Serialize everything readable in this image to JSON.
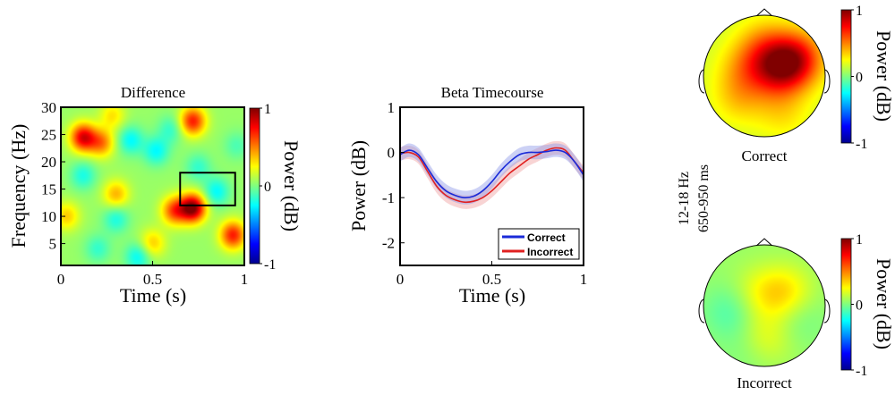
{
  "colors": {
    "correct": "#1a2ad8",
    "incorrect": "#e02020",
    "correct_band": "#8f9ae8",
    "incorrect_band": "#f0a0a0"
  },
  "colormap": "jet",
  "chart_data": [
    {
      "type": "heatmap",
      "title": "Difference",
      "xlabel": "Time (s)",
      "ylabel": "Frequency (Hz)",
      "xlim": [
        0,
        1
      ],
      "ylim": [
        1,
        30
      ],
      "xticks": [
        "0",
        "0.5",
        "1"
      ],
      "yticks": [
        "5",
        "10",
        "15",
        "20",
        "25",
        "30"
      ],
      "colorbar": {
        "label": "Power (dB)",
        "ticks": [
          "1",
          "0",
          "-1"
        ],
        "range": [
          -1,
          1
        ]
      },
      "roi": {
        "time": [
          0.65,
          0.95
        ],
        "freq": [
          12,
          18
        ]
      },
      "blobs": [
        {
          "t": 0.12,
          "f": 24.5,
          "v": 0.75
        },
        {
          "t": 0.22,
          "f": 23.5,
          "v": 0.45
        },
        {
          "t": 0.72,
          "f": 27.5,
          "v": 0.65
        },
        {
          "t": 0.3,
          "f": 14.0,
          "v": 0.35
        },
        {
          "t": 0.72,
          "f": 11.5,
          "v": 0.95
        },
        {
          "t": 0.62,
          "f": 11.0,
          "v": 0.55
        },
        {
          "t": 0.94,
          "f": 6.5,
          "v": 0.65
        },
        {
          "t": 0.5,
          "f": 5.0,
          "v": 0.3
        },
        {
          "t": 0.03,
          "f": 10.0,
          "v": 0.3
        },
        {
          "t": 0.28,
          "f": 28.5,
          "v": 0.25
        },
        {
          "t": 0.38,
          "f": 24.0,
          "v": -0.3
        },
        {
          "t": 0.52,
          "f": 22.0,
          "v": -0.3
        },
        {
          "t": 0.6,
          "f": 26.0,
          "v": -0.2
        },
        {
          "t": 0.12,
          "f": 17.5,
          "v": -0.25
        },
        {
          "t": 0.3,
          "f": 9.5,
          "v": -0.25
        },
        {
          "t": 0.42,
          "f": 2.5,
          "v": -0.3
        },
        {
          "t": 0.2,
          "f": 4.0,
          "v": -0.2
        },
        {
          "t": 0.85,
          "f": 14.5,
          "v": -0.3
        },
        {
          "t": 0.96,
          "f": 23.0,
          "v": -0.15
        },
        {
          "t": 0.75,
          "f": 19.0,
          "v": -0.2
        }
      ]
    },
    {
      "type": "line",
      "title": "Beta Timecourse",
      "xlabel": "Time (s)",
      "ylabel": "Power (dB)",
      "xlim": [
        0,
        1
      ],
      "ylim": [
        -2.5,
        1
      ],
      "xticks": [
        "0",
        "0.5",
        "1"
      ],
      "yticks": [
        "1",
        "0",
        "-1",
        "-2"
      ],
      "legend_position": "bottom-right",
      "x": [
        0,
        0.05,
        0.1,
        0.15,
        0.2,
        0.25,
        0.3,
        0.35,
        0.4,
        0.45,
        0.5,
        0.55,
        0.6,
        0.65,
        0.7,
        0.75,
        0.8,
        0.85,
        0.9,
        0.95,
        1.0
      ],
      "series": [
        {
          "name": "Correct",
          "values": [
            -0.05,
            0.05,
            -0.05,
            -0.35,
            -0.65,
            -0.85,
            -0.95,
            -1.0,
            -0.97,
            -0.85,
            -0.65,
            -0.4,
            -0.2,
            -0.05,
            0.0,
            0.0,
            0.02,
            0.05,
            0.0,
            -0.2,
            -0.5
          ],
          "error": 0.15
        },
        {
          "name": "Incorrect",
          "values": [
            -0.03,
            0.0,
            -0.1,
            -0.42,
            -0.75,
            -0.95,
            -1.05,
            -1.1,
            -1.08,
            -1.0,
            -0.85,
            -0.65,
            -0.45,
            -0.3,
            -0.15,
            -0.05,
            0.05,
            0.1,
            0.05,
            -0.2,
            -0.45
          ],
          "error": 0.15
        }
      ]
    },
    {
      "type": "heatmap",
      "subtype": "topography",
      "title": "Correct",
      "colorbar": {
        "label": "Power (dB)",
        "ticks": [
          "1",
          "0",
          "-1"
        ],
        "range": [
          -1,
          1
        ]
      },
      "spots": [
        {
          "x": 0.35,
          "y": 0.15,
          "v": 0.35
        },
        {
          "x": 0.55,
          "y": 0.3,
          "v": 0.45
        },
        {
          "x": 0.1,
          "y": 0.05,
          "v": 0.3
        },
        {
          "x": -0.3,
          "y": 0.1,
          "v": 0.25
        },
        {
          "x": -0.4,
          "y": -0.35,
          "v": 0.2
        },
        {
          "x": 0.0,
          "y": 0.5,
          "v": 0.25
        },
        {
          "x": -0.15,
          "y": -0.05,
          "v": -0.1
        },
        {
          "x": 0.3,
          "y": -0.6,
          "v": 0.15
        }
      ],
      "base": 0.15
    },
    {
      "type": "heatmap",
      "subtype": "topography",
      "title": "Incorrect",
      "colorbar": {
        "label": "Power (dB)",
        "ticks": [
          "1",
          "0",
          "-1"
        ],
        "range": [
          -1,
          1
        ]
      },
      "spots": [
        {
          "x": 0.35,
          "y": 0.2,
          "v": 0.25
        },
        {
          "x": -0.1,
          "y": 0.2,
          "v": 0.15
        },
        {
          "x": 0.0,
          "y": -0.55,
          "v": 0.2
        },
        {
          "x": -0.55,
          "y": -0.1,
          "v": -0.15
        },
        {
          "x": 0.55,
          "y": -0.2,
          "v": -0.1
        },
        {
          "x": -0.2,
          "y": -0.7,
          "v": -0.1
        }
      ],
      "base": 0.05
    }
  ],
  "annotation": {
    "freq_range": "12-18 Hz",
    "time_range": "650-950 ms"
  }
}
